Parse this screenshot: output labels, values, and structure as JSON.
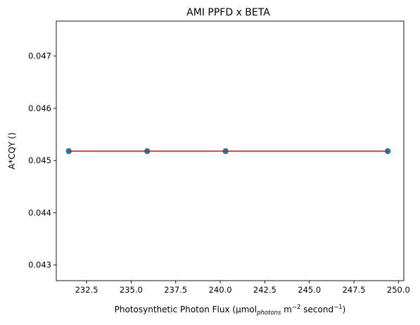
{
  "chart_data": {
    "type": "scatter",
    "title": "AMI PPFD x BETA",
    "xlabel": {
      "prefix": "Photosynthetic Photon Flux (µmol",
      "sub": "photons",
      "mid1": " m",
      "sup1": "−2",
      "mid2": " second",
      "sup2": "−1",
      "suffix": ")"
    },
    "ylabel": "A*CQY ()",
    "xlim": [
      230.8,
      250.3
    ],
    "ylim": [
      0.0427,
      0.04767
    ],
    "xticks": [
      232.5,
      235.0,
      237.5,
      240.0,
      242.5,
      245.0,
      247.5,
      250.0
    ],
    "xtick_labels": [
      "232.5",
      "235.0",
      "237.5",
      "240.0",
      "242.5",
      "245.0",
      "247.5",
      "250.0"
    ],
    "yticks": [
      0.043,
      0.044,
      0.045,
      0.046,
      0.047
    ],
    "ytick_labels": [
      "0.043",
      "0.044",
      "0.045",
      "0.046",
      "0.047"
    ],
    "points": [
      {
        "x": 231.5,
        "y": 0.04518
      },
      {
        "x": 235.9,
        "y": 0.04518
      },
      {
        "x": 240.3,
        "y": 0.04518
      },
      {
        "x": 249.4,
        "y": 0.04518
      }
    ],
    "fit_line": {
      "x": [
        231.5,
        249.4
      ],
      "y": [
        0.04518,
        0.04518
      ]
    },
    "colors": {
      "points": "#1f77b4",
      "line": "#ff0000"
    },
    "grid": false
  }
}
